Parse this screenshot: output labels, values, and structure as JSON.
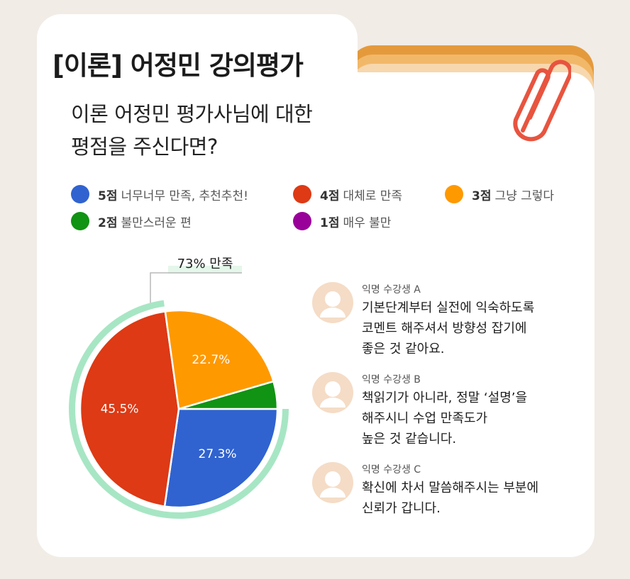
{
  "title": "[이론] 어정민 강의평가",
  "question": [
    "이론 어정민 평가사님에 대한",
    "평점을 주신다면?"
  ],
  "colors": {
    "five": "#3063cf",
    "four": "#dd3a15",
    "three": "#ff9900",
    "two": "#119313",
    "one": "#990099",
    "ring": "#a7e6c4",
    "accent": "#e49a3c",
    "clip": "#e8543f"
  },
  "legend": [
    {
      "points": "5점",
      "label": "너무너무 만족, 추천추천!",
      "color": "#3063cf"
    },
    {
      "points": "4점",
      "label": "대체로 만족",
      "color": "#dd3a15"
    },
    {
      "points": "3점",
      "label": "그냥 그렇다",
      "color": "#ff9900"
    },
    {
      "points": "2점",
      "label": "불만스러운 편",
      "color": "#119313"
    },
    {
      "points": "1점",
      "label": "매우 불만",
      "color": "#990099"
    }
  ],
  "satisfaction_label": "73% 만족",
  "chart_data": {
    "type": "pie",
    "title": "",
    "slices": [
      {
        "label": "5점",
        "value": 27.3,
        "display": "27.3%",
        "color": "#3063cf"
      },
      {
        "label": "4점",
        "value": 45.5,
        "display": "45.5%",
        "color": "#dd3a15"
      },
      {
        "label": "3점",
        "value": 22.7,
        "display": "22.7%",
        "color": "#ff9900"
      },
      {
        "label": "2점",
        "value": 4.5,
        "display": "",
        "color": "#119313"
      },
      {
        "label": "1점",
        "value": 0,
        "display": "",
        "color": "#990099"
      }
    ],
    "highlight": {
      "label": "73% 만족",
      "value": 72.8
    },
    "legend_position": "top"
  },
  "reviews": [
    {
      "name": "익명 수강생 A",
      "lines": [
        "기본단계부터 실전에 익숙하도록",
        "코멘트 해주셔서 방향성 잡기에",
        "좋은 것 같아요."
      ]
    },
    {
      "name": "익명 수강생 B",
      "lines": [
        "책읽기가 아니라, 정말 ‘설명’을",
        "해주시니 수업 만족도가",
        "높은 것 같습니다."
      ]
    },
    {
      "name": "익명 수강생 C",
      "lines": [
        "확신에 차서 말씀해주시는 부분에",
        "신뢰가 갑니다."
      ]
    }
  ]
}
